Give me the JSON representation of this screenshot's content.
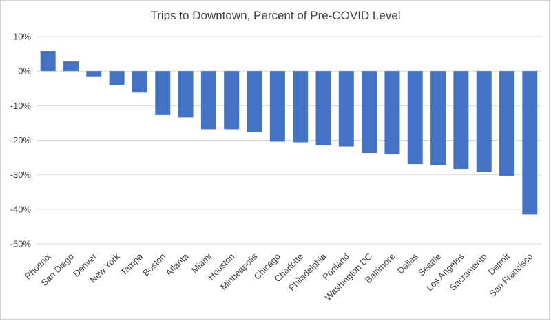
{
  "chart_data": {
    "type": "bar",
    "title": "Trips to Downtown, Percent of Pre-COVID Level",
    "xlabel": "",
    "ylabel": "",
    "categories": [
      "Phoenix",
      "San Diego",
      "Denver",
      "New York",
      "Tampa",
      "Boston",
      "Atlanta",
      "Miami",
      "Houston",
      "Minneapolis",
      "Chicago",
      "Charlotte",
      "Philadelphia",
      "Portland",
      "Washington DC",
      "Baltimore",
      "Dallas",
      "Seattle",
      "Los Angeles",
      "Sacramento",
      "Detroit",
      "San Francisco"
    ],
    "values": [
      5.8,
      2.8,
      -1.7,
      -4.0,
      -6.2,
      -12.7,
      -13.4,
      -16.8,
      -16.8,
      -17.7,
      -20.4,
      -20.6,
      -21.5,
      -21.8,
      -23.7,
      -24.1,
      -26.9,
      -27.2,
      -28.5,
      -29.2,
      -30.3,
      -41.5
    ],
    "ylim": [
      -50,
      10
    ],
    "yticks": [
      10,
      0,
      -10,
      -20,
      -30,
      -40,
      -50
    ],
    "ytick_labels": [
      "10%",
      "0%",
      "-10%",
      "-20%",
      "-30%",
      "-40%",
      "-50%"
    ],
    "grid": true,
    "bar_color": "#4472C4"
  }
}
